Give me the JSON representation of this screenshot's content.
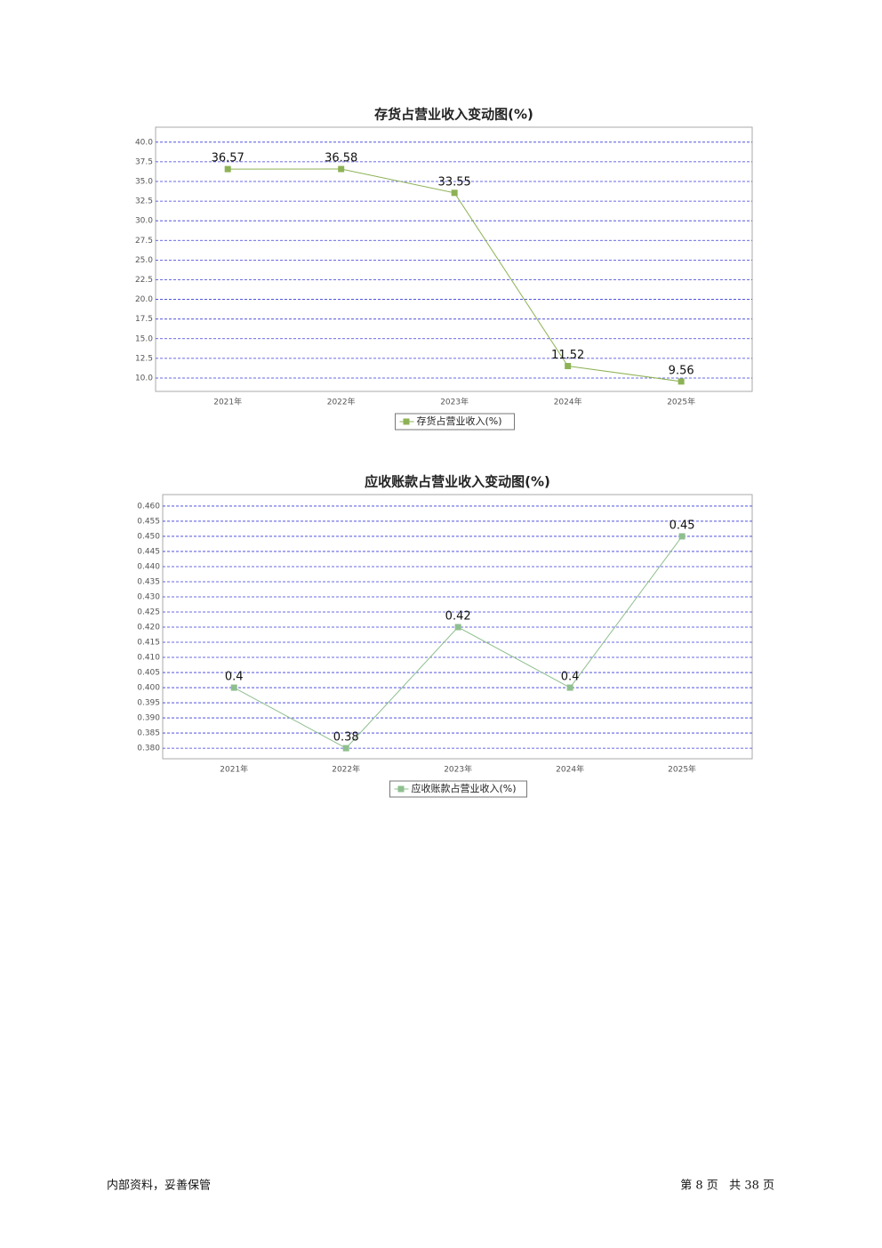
{
  "chart_data": [
    {
      "type": "line",
      "title": "存货占营业收入变动图(%)",
      "categories": [
        "2021年",
        "2022年",
        "2023年",
        "2024年",
        "2025年"
      ],
      "series": [
        {
          "name": "存货占营业收入(%)",
          "color": "#8db255",
          "values": [
            36.57,
            36.58,
            33.55,
            11.52,
            9.56
          ]
        }
      ],
      "ylim": [
        8.3,
        41.9
      ],
      "yticks": [
        {
          "value": 10,
          "label": "10.0"
        },
        {
          "value": 12.5,
          "label": "12.5"
        },
        {
          "value": 15,
          "label": "15.0"
        },
        {
          "value": 17.5,
          "label": "17.5"
        },
        {
          "value": 20,
          "label": "20.0"
        },
        {
          "value": 22.5,
          "label": "22.5"
        },
        {
          "value": 25,
          "label": "25.0"
        },
        {
          "value": 27.5,
          "label": "27.5"
        },
        {
          "value": 30,
          "label": "30.0"
        },
        {
          "value": 32.5,
          "label": "32.5"
        },
        {
          "value": 35,
          "label": "35.0"
        },
        {
          "value": 37.5,
          "label": "37.5"
        },
        {
          "value": 40,
          "label": "40.0"
        }
      ],
      "grid": true
    },
    {
      "type": "line",
      "title": "应收账款占营业收入变动图(%)",
      "categories": [
        "2021年",
        "2022年",
        "2023年",
        "2024年",
        "2025年"
      ],
      "series": [
        {
          "name": "应收账款占营业收入(%)",
          "color": "#8fbf8f",
          "values": [
            0.4,
            0.38,
            0.42,
            0.4,
            0.45
          ]
        }
      ],
      "ylim": [
        0.3765,
        0.4638
      ],
      "yticks": [
        {
          "value": 0.38,
          "label": "0.380"
        },
        {
          "value": 0.385,
          "label": "0.385"
        },
        {
          "value": 0.39,
          "label": "0.390"
        },
        {
          "value": 0.395,
          "label": "0.395"
        },
        {
          "value": 0.4,
          "label": "0.400"
        },
        {
          "value": 0.405,
          "label": "0.405"
        },
        {
          "value": 0.41,
          "label": "0.410"
        },
        {
          "value": 0.415,
          "label": "0.415"
        },
        {
          "value": 0.42,
          "label": "0.420"
        },
        {
          "value": 0.425,
          "label": "0.425"
        },
        {
          "value": 0.43,
          "label": "0.430"
        },
        {
          "value": 0.435,
          "label": "0.435"
        },
        {
          "value": 0.44,
          "label": "0.440"
        },
        {
          "value": 0.445,
          "label": "0.445"
        },
        {
          "value": 0.45,
          "label": "0.450"
        },
        {
          "value": 0.455,
          "label": "0.455"
        },
        {
          "value": 0.46,
          "label": "0.460"
        }
      ],
      "grid": true
    }
  ],
  "footer": {
    "left": "内部资料，妥善保管",
    "right": "第 8 页   共 38 页"
  }
}
